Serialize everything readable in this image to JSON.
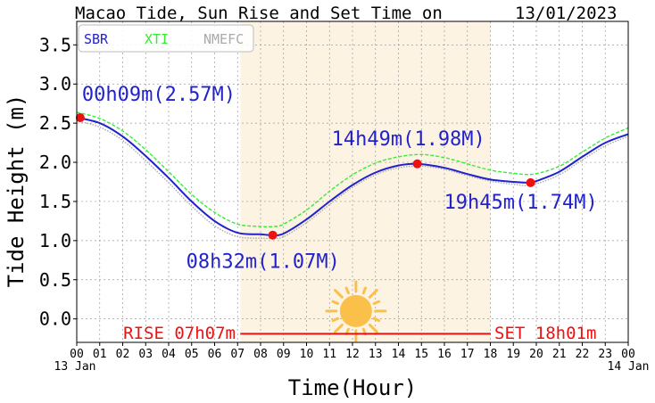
{
  "chart_data": {
    "type": "line",
    "title": "Macao Tide, Sun Rise and Set Time on",
    "date": "13/01/2023",
    "xlabel": "Time(Hour)",
    "ylabel": "Tide Height (m)",
    "xlim": [
      0,
      24
    ],
    "ylim": [
      -0.3,
      3.8
    ],
    "yticks": [
      "0.0",
      "0.5",
      "1.0",
      "1.5",
      "2.0",
      "2.5",
      "3.0",
      "3.5"
    ],
    "xticks": [
      "00",
      "01",
      "02",
      "03",
      "04",
      "05",
      "06",
      "07",
      "08",
      "09",
      "10",
      "11",
      "12",
      "13",
      "14",
      "15",
      "16",
      "17",
      "18",
      "19",
      "20",
      "21",
      "22",
      "23",
      "00"
    ],
    "x_start_date": "13 Jan",
    "x_end_date": "14 Jan",
    "grid": true,
    "legend_placement": "top-left",
    "daylight_span": [
      7.117,
      18.017
    ],
    "sun_icon": "sun-icon",
    "series": [
      {
        "name": "SBR",
        "color": "#2222cc",
        "style": "solid",
        "x": [
          0,
          1,
          2,
          3,
          4,
          5,
          6,
          7,
          8,
          8.53,
          9,
          10,
          11,
          12,
          13,
          14,
          14.82,
          16,
          17,
          18,
          19,
          19.75,
          20,
          21,
          22,
          23,
          24
        ],
        "values": [
          2.57,
          2.5,
          2.33,
          2.08,
          1.8,
          1.5,
          1.25,
          1.1,
          1.08,
          1.07,
          1.09,
          1.27,
          1.5,
          1.71,
          1.87,
          1.96,
          1.98,
          1.93,
          1.85,
          1.78,
          1.75,
          1.74,
          1.76,
          1.88,
          2.07,
          2.25,
          2.36
        ]
      },
      {
        "name": "XTI",
        "color": "#33ee33",
        "style": "dashed",
        "x": [
          0,
          1,
          2,
          3,
          4,
          5,
          6,
          7,
          8,
          8.6,
          9,
          10,
          11,
          12,
          13,
          14,
          15,
          16,
          17,
          18,
          19,
          19.9,
          21,
          22,
          23,
          24
        ],
        "values": [
          2.64,
          2.56,
          2.4,
          2.16,
          1.88,
          1.59,
          1.36,
          1.21,
          1.18,
          1.18,
          1.21,
          1.39,
          1.63,
          1.84,
          1.99,
          2.07,
          2.1,
          2.06,
          1.98,
          1.9,
          1.86,
          1.85,
          1.95,
          2.13,
          2.31,
          2.44
        ]
      },
      {
        "name": "NMEFC",
        "color": "#aaaaaa",
        "style": "dotted",
        "x": [
          0,
          1,
          2,
          3,
          4,
          5,
          6,
          7,
          8,
          8.5,
          9,
          10,
          11,
          12,
          13,
          14,
          15,
          16,
          17,
          18,
          19,
          19.8,
          21,
          22,
          23,
          24
        ],
        "values": [
          2.53,
          2.45,
          2.28,
          2.02,
          1.74,
          1.44,
          1.19,
          1.05,
          1.03,
          1.03,
          1.05,
          1.23,
          1.46,
          1.68,
          1.84,
          1.93,
          1.95,
          1.91,
          1.83,
          1.76,
          1.72,
          1.71,
          1.84,
          2.03,
          2.21,
          2.33
        ]
      }
    ],
    "annotations": [
      {
        "x": 0.15,
        "y": 2.57,
        "label": "00h09m(2.57M)"
      },
      {
        "x": 8.53,
        "y": 1.07,
        "label": "08h32m(1.07M)"
      },
      {
        "x": 14.82,
        "y": 1.98,
        "label": "14h49m(1.98M)"
      },
      {
        "x": 19.75,
        "y": 1.74,
        "label": "19h45m(1.74M)"
      }
    ],
    "sunrise_label": "RISE 07h07m",
    "sunset_label": "SET 18h01m"
  },
  "colors": {
    "label_text": "#2222cc",
    "sun_text": "#ee1111",
    "day_band": "#fdf3e3",
    "extreme_marker": "#ee1111",
    "sun_fill": "#fbc04a"
  }
}
